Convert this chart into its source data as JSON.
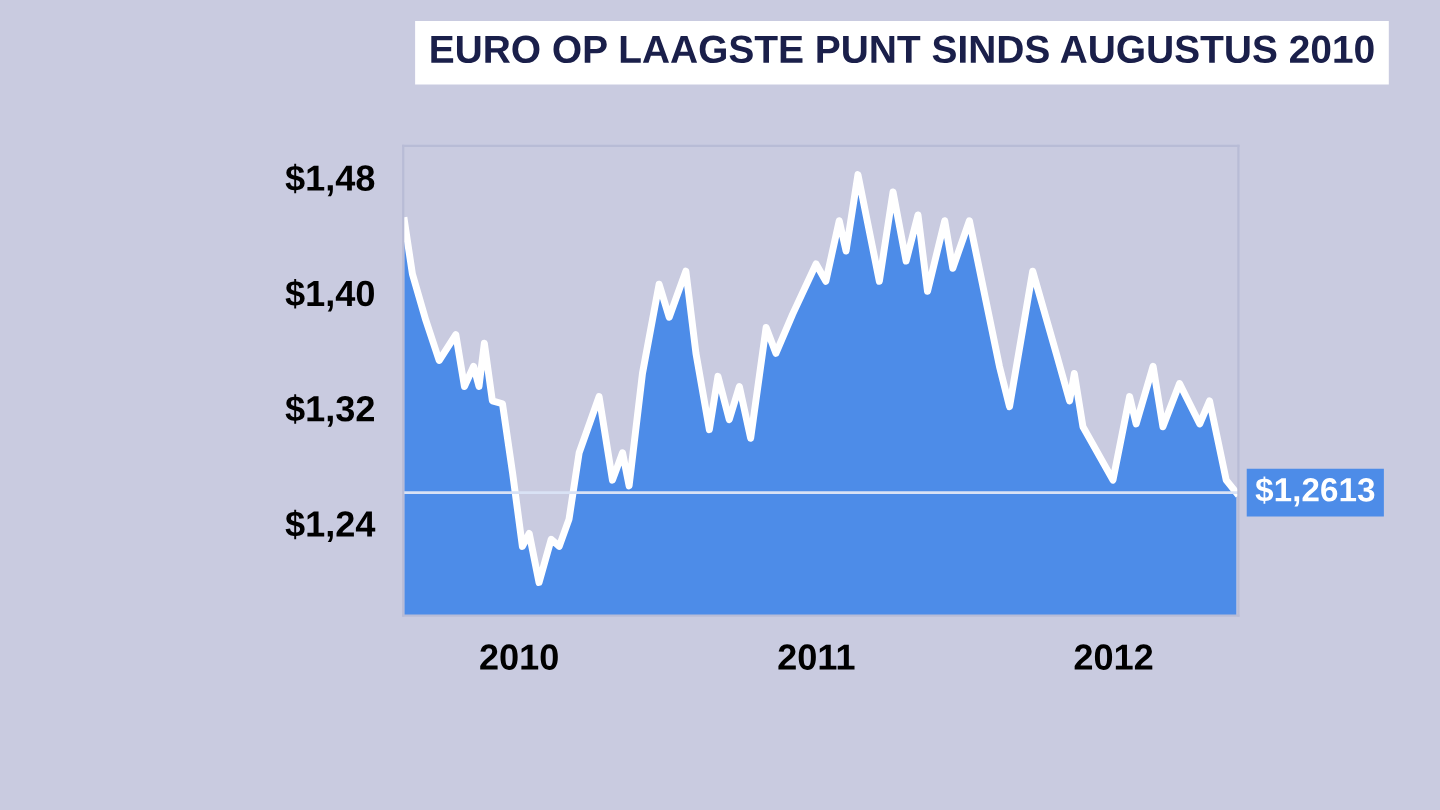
{
  "chart_data": {
    "type": "area",
    "title": "EURO OP LAAGSTE PUNT SINDS AUGUSTUS 2010",
    "x": [
      2009.614,
      2009.641,
      2009.686,
      2009.731,
      2009.787,
      2009.816,
      2009.847,
      2009.865,
      2009.883,
      2009.91,
      2009.944,
      2009.978,
      2010.011,
      2010.034,
      2010.067,
      2010.108,
      2010.135,
      2010.168,
      2010.202,
      2010.269,
      2010.314,
      2010.348,
      2010.37,
      2010.415,
      2010.471,
      2010.505,
      2010.561,
      2010.595,
      2010.64,
      2010.669,
      2010.707,
      2010.741,
      2010.779,
      2010.831,
      2010.864,
      2010.92,
      2010.999,
      2011.032,
      2011.077,
      2011.1,
      2011.14,
      2011.212,
      2011.258,
      2011.302,
      2011.342,
      2011.374,
      2011.432,
      2011.459,
      2011.515,
      2011.571,
      2011.616,
      2011.65,
      2011.728,
      2011.807,
      2011.852,
      2011.868,
      2011.897,
      2011.998,
      2012.054,
      2012.076,
      2012.133,
      2012.166,
      2012.222,
      2012.29,
      2012.323,
      2012.379,
      2012.413
    ],
    "series": [
      {
        "color": "#4d8ce8",
        "values": [
          1.45,
          1.413,
          1.381,
          1.353,
          1.371,
          1.335,
          1.349,
          1.335,
          1.365,
          1.325,
          1.323,
          1.275,
          1.224,
          1.233,
          1.199,
          1.229,
          1.224,
          1.243,
          1.289,
          1.328,
          1.27,
          1.289,
          1.266,
          1.344,
          1.406,
          1.383,
          1.415,
          1.358,
          1.305,
          1.342,
          1.312,
          1.335,
          1.299,
          1.376,
          1.358,
          1.385,
          1.42,
          1.408,
          1.45,
          1.429,
          1.482,
          1.408,
          1.47,
          1.422,
          1.454,
          1.401,
          1.45,
          1.417,
          1.45,
          1.394,
          1.349,
          1.321,
          1.415,
          1.358,
          1.325,
          1.344,
          1.307,
          1.27,
          1.328,
          1.309,
          1.349,
          1.307,
          1.337,
          1.309,
          1.325,
          1.27,
          1.2613
        ]
      }
    ],
    "xlim": [
      2009.61,
      2012.42
    ],
    "ylim": [
      1.176,
      1.502
    ],
    "xticks": [
      2010,
      2011,
      2012
    ],
    "yticks": [
      {
        "value": 1.24,
        "label": "$1,24"
      },
      {
        "value": 1.32,
        "label": "$1,32"
      },
      {
        "value": 1.4,
        "label": "$1,40"
      },
      {
        "value": 1.48,
        "label": "$1,48"
      }
    ],
    "ref_lines": [
      {
        "axis": "y",
        "value": 1.2613,
        "label": "$1,2613",
        "color": "#d9e2f5"
      }
    ],
    "grid": false,
    "legend": false
  }
}
